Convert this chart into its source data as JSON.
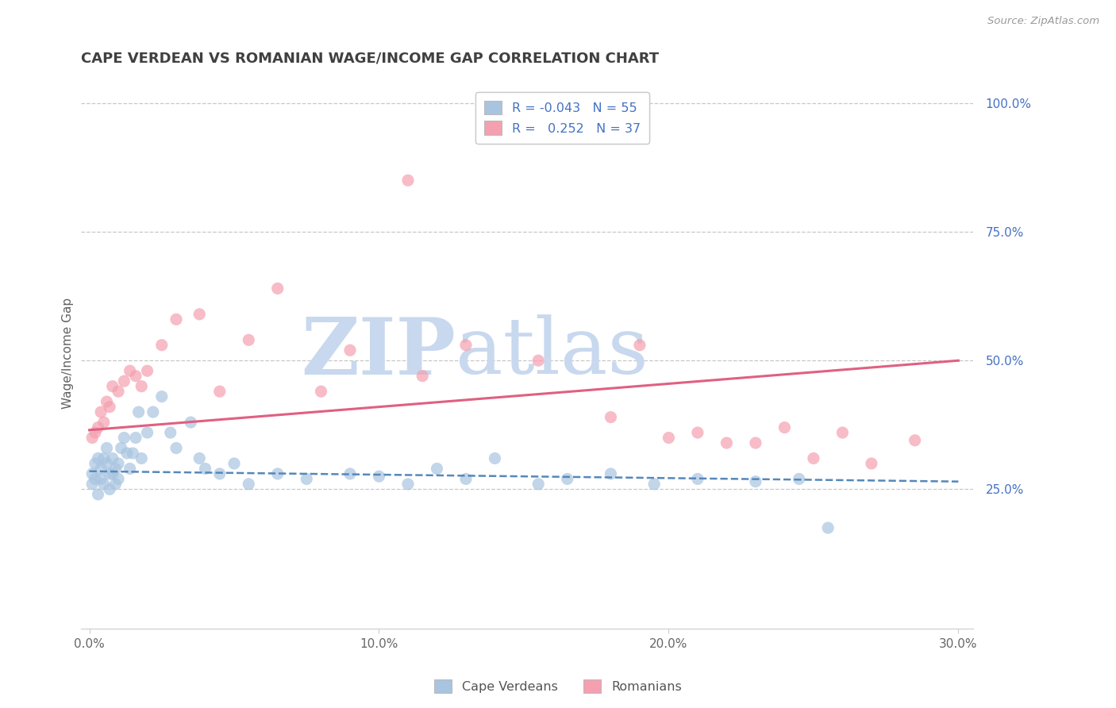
{
  "title": "CAPE VERDEAN VS ROMANIAN WAGE/INCOME GAP CORRELATION CHART",
  "source_text": "Source: ZipAtlas.com",
  "ylabel": "Wage/Income Gap",
  "xlim": [
    -0.003,
    0.305
  ],
  "ylim": [
    -0.02,
    1.05
  ],
  "xtick_labels": [
    "0.0%",
    "10.0%",
    "20.0%",
    "30.0%"
  ],
  "xtick_vals": [
    0.0,
    0.1,
    0.2,
    0.3
  ],
  "ytick_labels": [
    "100.0%",
    "75.0%",
    "50.0%",
    "25.0%"
  ],
  "ytick_vals": [
    1.0,
    0.75,
    0.5,
    0.25
  ],
  "blue_color": "#a8c4e0",
  "pink_color": "#f4a0b0",
  "blue_line_color": "#5588bb",
  "pink_line_color": "#e06080",
  "watermark_color": "#c8d8ee",
  "cv_x": [
    0.001,
    0.001,
    0.002,
    0.002,
    0.003,
    0.003,
    0.004,
    0.004,
    0.005,
    0.005,
    0.006,
    0.006,
    0.007,
    0.007,
    0.008,
    0.008,
    0.009,
    0.009,
    0.01,
    0.01,
    0.011,
    0.012,
    0.013,
    0.014,
    0.015,
    0.016,
    0.017,
    0.018,
    0.02,
    0.022,
    0.025,
    0.028,
    0.03,
    0.035,
    0.038,
    0.04,
    0.045,
    0.05,
    0.055,
    0.065,
    0.075,
    0.09,
    0.1,
    0.11,
    0.12,
    0.13,
    0.14,
    0.155,
    0.165,
    0.18,
    0.195,
    0.21,
    0.23,
    0.245,
    0.255
  ],
  "cv_y": [
    0.28,
    0.26,
    0.3,
    0.27,
    0.31,
    0.24,
    0.27,
    0.29,
    0.31,
    0.26,
    0.3,
    0.33,
    0.28,
    0.25,
    0.31,
    0.28,
    0.26,
    0.29,
    0.3,
    0.27,
    0.33,
    0.35,
    0.32,
    0.29,
    0.32,
    0.35,
    0.4,
    0.31,
    0.36,
    0.4,
    0.43,
    0.36,
    0.33,
    0.38,
    0.31,
    0.29,
    0.28,
    0.3,
    0.26,
    0.28,
    0.27,
    0.28,
    0.275,
    0.26,
    0.29,
    0.27,
    0.31,
    0.26,
    0.27,
    0.28,
    0.26,
    0.27,
    0.265,
    0.27,
    0.175
  ],
  "ro_x": [
    0.001,
    0.002,
    0.003,
    0.004,
    0.005,
    0.006,
    0.007,
    0.008,
    0.01,
    0.012,
    0.014,
    0.016,
    0.018,
    0.02,
    0.025,
    0.03,
    0.038,
    0.045,
    0.055,
    0.065,
    0.08,
    0.09,
    0.11,
    0.115,
    0.13,
    0.155,
    0.18,
    0.19,
    0.2,
    0.21,
    0.22,
    0.23,
    0.24,
    0.25,
    0.26,
    0.27,
    0.285
  ],
  "ro_y": [
    0.35,
    0.36,
    0.37,
    0.4,
    0.38,
    0.42,
    0.41,
    0.45,
    0.44,
    0.46,
    0.48,
    0.47,
    0.45,
    0.48,
    0.53,
    0.58,
    0.59,
    0.44,
    0.54,
    0.64,
    0.44,
    0.52,
    0.85,
    0.47,
    0.53,
    0.5,
    0.39,
    0.53,
    0.35,
    0.36,
    0.34,
    0.34,
    0.37,
    0.31,
    0.36,
    0.3,
    0.345
  ],
  "blue_line_x": [
    0.0,
    0.3
  ],
  "blue_line_y": [
    0.285,
    0.265
  ],
  "pink_line_x": [
    0.0,
    0.3
  ],
  "pink_line_y": [
    0.365,
    0.5
  ],
  "bg_color": "#ffffff",
  "grid_color": "#c8c8c8",
  "title_color": "#404040",
  "axis_label_color": "#606060",
  "tick_color": "#4472c4",
  "legend_text_color": "#4472c4"
}
